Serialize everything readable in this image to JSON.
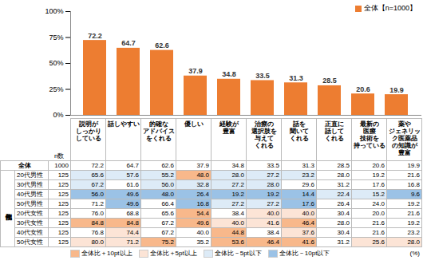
{
  "chart_data": {
    "type": "bar",
    "categories": [
      "説明が\nしっかり\nしている",
      "話しやすい",
      "的確な\nアドバイス\nをくれる",
      "優しい",
      "経験が\n豊富",
      "治療の\n選択肢を\n与えて\nくれる",
      "話を\n聞いて\nくれる",
      "正直に\n話して\nくれる",
      "最新の\n医療\n技術を\n持っている",
      "薬や\nジェネリッ\nク医薬品\nの知識が\n豊富"
    ],
    "series": [
      {
        "name": "全体【n=1000】",
        "color": "#ed7d31",
        "values": [
          72.2,
          64.7,
          62.6,
          37.9,
          34.8,
          33.5,
          31.3,
          28.5,
          20.6,
          19.9
        ]
      }
    ],
    "ylim": [
      0,
      100
    ],
    "yticks": [
      {
        "value": 0,
        "label": "0%"
      },
      {
        "value": 25,
        "label": "25%"
      },
      {
        "value": 50,
        "label": "50%"
      },
      {
        "value": 75,
        "label": "75%"
      },
      {
        "value": 100,
        "label": "100%"
      }
    ],
    "grid": false,
    "legend": "top-right",
    "data_labels": true
  },
  "table": {
    "group_label": "性年代別",
    "n_header": "n数",
    "unit": "(%)",
    "rows": [
      {
        "label": "全体",
        "n": 1000,
        "values": [
          "72.2",
          "64.7",
          "62.6",
          "37.9",
          "34.8",
          "33.5",
          "31.3",
          "28.5",
          "20.6",
          "19.9"
        ]
      },
      {
        "label": "20代男性",
        "n": 125,
        "values": [
          "65.6",
          "57.6",
          "55.2",
          "48.0",
          "28.0",
          "27.2",
          "23.2",
          "28.0",
          "19.2",
          "21.6"
        ]
      },
      {
        "label": "30代男性",
        "n": 125,
        "values": [
          "67.2",
          "61.6",
          "56.0",
          "32.8",
          "27.2",
          "28.0",
          "29.6",
          "31.2",
          "17.6",
          "16.8"
        ]
      },
      {
        "label": "40代男性",
        "n": 125,
        "values": [
          "56.0",
          "49.6",
          "48.0",
          "26.4",
          "19.2",
          "19.2",
          "14.4",
          "22.4",
          "15.2",
          "9.6"
        ]
      },
      {
        "label": "50代男性",
        "n": 125,
        "values": [
          "71.2",
          "49.6",
          "66.4",
          "16.8",
          "27.2",
          "27.2",
          "17.6",
          "26.4",
          "24.0",
          "19.2"
        ]
      },
      {
        "label": "20代女性",
        "n": 125,
        "values": [
          "76.0",
          "68.8",
          "65.6",
          "54.4",
          "38.4",
          "40.0",
          "40.0",
          "30.4",
          "20.0",
          "21.6"
        ]
      },
      {
        "label": "30代女性",
        "n": 125,
        "values": [
          "84.8",
          "84.8",
          "67.2",
          "49.6",
          "40.0",
          "41.6",
          "46.4",
          "28.0",
          "21.6",
          "19.2"
        ]
      },
      {
        "label": "40代女性",
        "n": 125,
        "values": [
          "76.8",
          "74.4",
          "67.2",
          "40.0",
          "44.8",
          "38.4",
          "37.6",
          "30.4",
          "21.6",
          "23.2"
        ]
      },
      {
        "label": "50代女性",
        "n": 125,
        "values": [
          "80.0",
          "71.2",
          "75.2",
          "35.2",
          "53.6",
          "46.4",
          "41.6",
          "31.2",
          "25.6",
          "28.0"
        ]
      }
    ],
    "highlight_legend": [
      {
        "label": "全体比＋10pt以上",
        "color": "#f8b88b",
        "diff": 10
      },
      {
        "label": "全体比＋5pt以上",
        "color": "#fce4d6",
        "diff": 5
      },
      {
        "label": "全体比－5pt以下",
        "color": "#ddebf7",
        "diff": -5
      },
      {
        "label": "全体比－10pt以下",
        "color": "#9bc2e6",
        "diff": -10
      }
    ]
  }
}
